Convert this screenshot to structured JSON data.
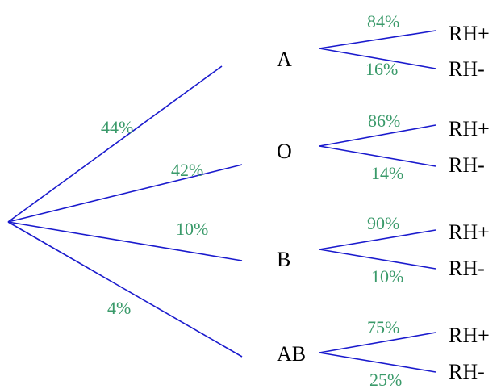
{
  "colors": {
    "branch": "#1a1acd",
    "percent": "#3a9a6a",
    "text": "#000000"
  },
  "groups": [
    {
      "label": "A",
      "percent": "44%",
      "rh_pos_label": "RH+",
      "rh_pos_percent": "84%",
      "rh_neg_label": "RH-",
      "rh_neg_percent": "16%"
    },
    {
      "label": "O",
      "percent": "42%",
      "rh_pos_label": "RH+",
      "rh_pos_percent": "86%",
      "rh_neg_label": "RH-",
      "rh_neg_percent": "14%"
    },
    {
      "label": "B",
      "percent": "10%",
      "rh_pos_label": "RH+",
      "rh_pos_percent": "90%",
      "rh_neg_label": "RH-",
      "rh_neg_percent": "10%"
    },
    {
      "label": "AB",
      "percent": "4%",
      "rh_pos_label": "RH+",
      "rh_pos_percent": "75%",
      "rh_neg_label": "RH-",
      "rh_neg_percent": "25%"
    }
  ]
}
